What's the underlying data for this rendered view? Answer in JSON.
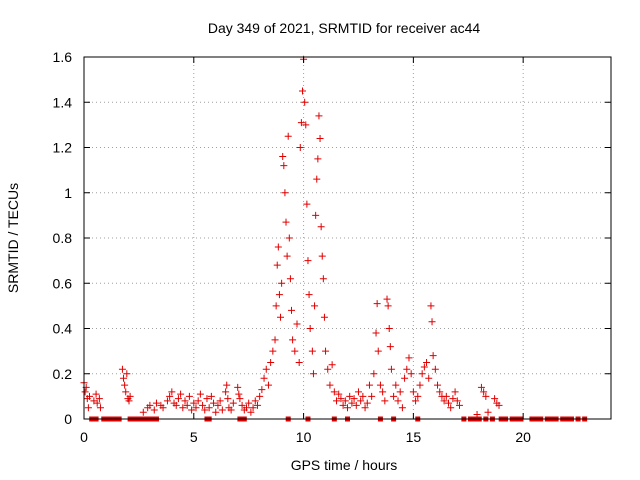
{
  "chart_data": {
    "type": "scatter",
    "title": "Day 349 of 2021, SRMTID for receiver ac44",
    "xlabel": "GPS time / hours",
    "ylabel": "SRMTID / TECUs",
    "xlim": [
      0,
      24
    ],
    "ylim": [
      0,
      1.6
    ],
    "x_ticks": [
      0,
      5,
      10,
      15,
      20
    ],
    "x_tick_labels": [
      "0",
      "5",
      "10",
      "15",
      "20"
    ],
    "y_ticks": [
      0,
      0.2,
      0.4,
      0.6,
      0.8,
      1.0,
      1.2,
      1.4,
      1.6
    ],
    "y_tick_labels": [
      "0",
      "0.2",
      "0.4",
      "0.6",
      "0.8",
      "1",
      "1.2",
      "1.4",
      "1.6"
    ],
    "grid": true,
    "marker": "plus",
    "color": "#e00000",
    "series": [
      {
        "name": "SRMTID",
        "points": [
          [
            0.0,
            0.16
          ],
          [
            0.05,
            0.12
          ],
          [
            0.1,
            0.14
          ],
          [
            0.15,
            0.09
          ],
          [
            0.2,
            0.05
          ],
          [
            0.25,
            0.1
          ],
          [
            0.45,
            0.08
          ],
          [
            0.55,
            0.11
          ],
          [
            0.6,
            0.07
          ],
          [
            0.7,
            0.09
          ],
          [
            0.75,
            0.05
          ],
          [
            1.75,
            0.22
          ],
          [
            1.8,
            0.18
          ],
          [
            1.85,
            0.15
          ],
          [
            1.9,
            0.12
          ],
          [
            1.95,
            0.2
          ],
          [
            2.0,
            0.09
          ],
          [
            2.05,
            0.08
          ],
          [
            2.1,
            0.1
          ],
          [
            2.7,
            0.03
          ],
          [
            2.9,
            0.05
          ],
          [
            3.0,
            0.06
          ],
          [
            3.2,
            0.04
          ],
          [
            3.3,
            0.07
          ],
          [
            3.5,
            0.06
          ],
          [
            3.6,
            0.05
          ],
          [
            3.8,
            0.08
          ],
          [
            3.9,
            0.1
          ],
          [
            4.0,
            0.12
          ],
          [
            4.1,
            0.07
          ],
          [
            4.2,
            0.06
          ],
          [
            4.3,
            0.09
          ],
          [
            4.4,
            0.11
          ],
          [
            4.5,
            0.05
          ],
          [
            4.6,
            0.08
          ],
          [
            4.7,
            0.06
          ],
          [
            4.8,
            0.1
          ],
          [
            4.9,
            0.04
          ],
          [
            5.0,
            0.07
          ],
          [
            5.1,
            0.05
          ],
          [
            5.2,
            0.08
          ],
          [
            5.3,
            0.11
          ],
          [
            5.4,
            0.06
          ],
          [
            5.5,
            0.04
          ],
          [
            5.6,
            0.09
          ],
          [
            5.7,
            0.05
          ],
          [
            5.8,
            0.1
          ],
          [
            5.9,
            0.07
          ],
          [
            6.0,
            0.03
          ],
          [
            6.1,
            0.06
          ],
          [
            6.2,
            0.08
          ],
          [
            6.3,
            0.04
          ],
          [
            6.45,
            0.12
          ],
          [
            6.5,
            0.15
          ],
          [
            6.55,
            0.09
          ],
          [
            6.6,
            0.05
          ],
          [
            6.7,
            0.04
          ],
          [
            6.8,
            0.07
          ],
          [
            7.0,
            0.14
          ],
          [
            7.05,
            0.11
          ],
          [
            7.1,
            0.09
          ],
          [
            7.2,
            0.06
          ],
          [
            7.3,
            0.04
          ],
          [
            7.4,
            0.05
          ],
          [
            7.5,
            0.07
          ],
          [
            7.6,
            0.03
          ],
          [
            7.7,
            0.05
          ],
          [
            7.8,
            0.08
          ],
          [
            7.9,
            0.06
          ],
          [
            8.0,
            0.1
          ],
          [
            8.1,
            0.13
          ],
          [
            8.2,
            0.18
          ],
          [
            8.3,
            0.22
          ],
          [
            8.4,
            0.15
          ],
          [
            8.5,
            0.25
          ],
          [
            8.6,
            0.3
          ],
          [
            8.7,
            0.35
          ],
          [
            8.75,
            0.5
          ],
          [
            8.8,
            0.68
          ],
          [
            8.85,
            0.76
          ],
          [
            8.9,
            0.55
          ],
          [
            8.95,
            0.45
          ],
          [
            9.0,
            0.6
          ],
          [
            9.05,
            1.16
          ],
          [
            9.1,
            1.12
          ],
          [
            9.15,
            1.0
          ],
          [
            9.2,
            0.87
          ],
          [
            9.25,
            0.72
          ],
          [
            9.3,
            1.25
          ],
          [
            9.35,
            0.8
          ],
          [
            9.4,
            0.62
          ],
          [
            9.45,
            0.48
          ],
          [
            9.5,
            0.35
          ],
          [
            9.6,
            0.3
          ],
          [
            9.7,
            0.42
          ],
          [
            9.8,
            0.25
          ],
          [
            9.85,
            1.2
          ],
          [
            9.9,
            1.31
          ],
          [
            9.95,
            1.45
          ],
          [
            10.0,
            1.59
          ],
          [
            10.05,
            1.4
          ],
          [
            10.1,
            1.3
          ],
          [
            10.15,
            0.95
          ],
          [
            10.2,
            0.7
          ],
          [
            10.25,
            0.55
          ],
          [
            10.3,
            0.4
          ],
          [
            10.4,
            0.3
          ],
          [
            10.45,
            0.2
          ],
          [
            10.5,
            0.5
          ],
          [
            10.55,
            0.9
          ],
          [
            10.6,
            1.06
          ],
          [
            10.65,
            1.15
          ],
          [
            10.7,
            1.34
          ],
          [
            10.75,
            1.24
          ],
          [
            10.8,
            0.85
          ],
          [
            10.85,
            0.72
          ],
          [
            10.9,
            0.62
          ],
          [
            10.95,
            0.45
          ],
          [
            11.0,
            0.3
          ],
          [
            11.1,
            0.22
          ],
          [
            11.2,
            0.15
          ],
          [
            11.3,
            0.24
          ],
          [
            11.4,
            0.12
          ],
          [
            11.5,
            0.08
          ],
          [
            11.6,
            0.11
          ],
          [
            11.7,
            0.09
          ],
          [
            11.8,
            0.06
          ],
          [
            11.9,
            0.08
          ],
          [
            12.0,
            0.05
          ],
          [
            12.1,
            0.1
          ],
          [
            12.2,
            0.07
          ],
          [
            12.3,
            0.09
          ],
          [
            12.4,
            0.06
          ],
          [
            12.5,
            0.12
          ],
          [
            12.6,
            0.08
          ],
          [
            12.7,
            0.1
          ],
          [
            12.8,
            0.05
          ],
          [
            12.9,
            0.07
          ],
          [
            13.0,
            0.15
          ],
          [
            13.1,
            0.1
          ],
          [
            13.2,
            0.2
          ],
          [
            13.3,
            0.38
          ],
          [
            13.35,
            0.51
          ],
          [
            13.4,
            0.3
          ],
          [
            13.5,
            0.15
          ],
          [
            13.6,
            0.12
          ],
          [
            13.7,
            0.08
          ],
          [
            13.8,
            0.53
          ],
          [
            13.85,
            0.5
          ],
          [
            13.9,
            0.4
          ],
          [
            13.95,
            0.32
          ],
          [
            14.0,
            0.22
          ],
          [
            14.1,
            0.1
          ],
          [
            14.2,
            0.15
          ],
          [
            14.3,
            0.08
          ],
          [
            14.4,
            0.12
          ],
          [
            14.5,
            0.05
          ],
          [
            14.6,
            0.18
          ],
          [
            14.7,
            0.22
          ],
          [
            14.8,
            0.27
          ],
          [
            14.9,
            0.2
          ],
          [
            15.0,
            0.12
          ],
          [
            15.1,
            0.08
          ],
          [
            15.2,
            0.1
          ],
          [
            15.3,
            0.15
          ],
          [
            15.4,
            0.2
          ],
          [
            15.5,
            0.23
          ],
          [
            15.6,
            0.25
          ],
          [
            15.7,
            0.18
          ],
          [
            15.8,
            0.5
          ],
          [
            15.85,
            0.43
          ],
          [
            15.9,
            0.28
          ],
          [
            16.0,
            0.22
          ],
          [
            16.1,
            0.15
          ],
          [
            16.2,
            0.12
          ],
          [
            16.3,
            0.1
          ],
          [
            16.4,
            0.08
          ],
          [
            16.5,
            0.1
          ],
          [
            16.6,
            0.07
          ],
          [
            16.7,
            0.05
          ],
          [
            16.8,
            0.09
          ],
          [
            16.9,
            0.12
          ],
          [
            17.0,
            0.08
          ],
          [
            17.1,
            0.06
          ],
          [
            17.9,
            0.02
          ],
          [
            18.1,
            0.14
          ],
          [
            18.2,
            0.12
          ],
          [
            18.3,
            0.1
          ],
          [
            18.4,
            0.03
          ],
          [
            18.7,
            0.09
          ],
          [
            18.8,
            0.07
          ],
          [
            18.9,
            0.06
          ]
        ]
      }
    ],
    "zero_markers_x": [
      0.35,
      0.55,
      0.9,
      1.0,
      1.2,
      1.4,
      1.6,
      2.1,
      2.3,
      2.5,
      2.7,
      2.9,
      3.1,
      3.3,
      5.6,
      5.7,
      7.1,
      7.3,
      9.3,
      10.2,
      11.4,
      12.0,
      13.5,
      14.1,
      15.2,
      17.3,
      17.6,
      17.8,
      18.0,
      18.3,
      18.6,
      19.0,
      19.2,
      19.5,
      19.7,
      19.9,
      20.4,
      20.6,
      20.8,
      21.1,
      21.3,
      21.5,
      21.8,
      22.0,
      22.2,
      22.5,
      22.8
    ]
  }
}
